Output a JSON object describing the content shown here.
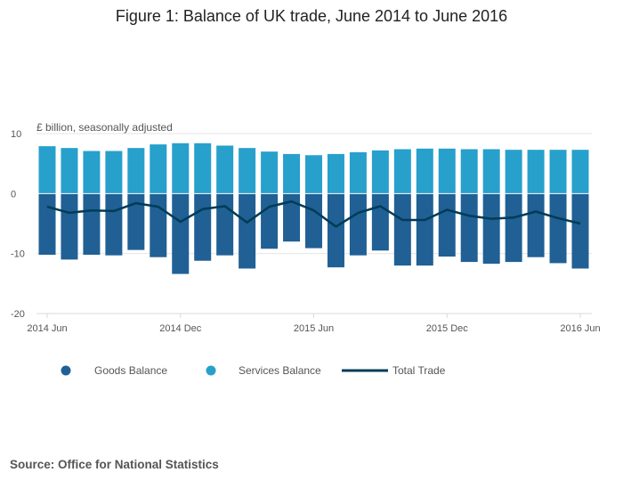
{
  "chart_data": {
    "type": "bar",
    "title": "Figure 1: Balance of UK trade, June 2014 to June 2016",
    "units_label": "£ billion, seasonally adjusted",
    "source": "Source: Office for National Statistics",
    "categories": [
      "2014 Jun",
      "2014 Jul",
      "2014 Aug",
      "2014 Sep",
      "2014 Oct",
      "2014 Nov",
      "2014 Dec",
      "2015 Jan",
      "2015 Feb",
      "2015 Mar",
      "2015 Apr",
      "2015 May",
      "2015 Jun",
      "2015 Jul",
      "2015 Aug",
      "2015 Sep",
      "2015 Oct",
      "2015 Nov",
      "2015 Dec",
      "2016 Jan",
      "2016 Feb",
      "2016 Mar",
      "2016 Apr",
      "2016 May",
      "2016 Jun"
    ],
    "series": [
      {
        "name": "Goods Balance",
        "type": "bar",
        "stack": "balance",
        "color": "#206095",
        "values": [
          -10.2,
          -11.0,
          -10.2,
          -10.3,
          -9.4,
          -10.6,
          -13.4,
          -11.2,
          -10.3,
          -12.5,
          -9.2,
          -8.0,
          -9.1,
          -12.3,
          -10.3,
          -9.5,
          -12.0,
          -12.0,
          -10.5,
          -11.4,
          -11.7,
          -11.4,
          -10.6,
          -11.6,
          -12.5
        ]
      },
      {
        "name": "Services Balance",
        "type": "bar",
        "stack": "balance",
        "color": "#27a0cc",
        "values": [
          7.9,
          7.6,
          7.1,
          7.1,
          7.6,
          8.2,
          8.4,
          8.4,
          8.0,
          7.6,
          7.0,
          6.6,
          6.4,
          6.6,
          6.9,
          7.2,
          7.4,
          7.5,
          7.5,
          7.4,
          7.4,
          7.3,
          7.3,
          7.3,
          7.3
        ]
      },
      {
        "name": "Total Trade",
        "type": "line",
        "color": "#003c57",
        "values": [
          -2.2,
          -3.2,
          -2.8,
          -2.9,
          -1.6,
          -2.2,
          -4.7,
          -2.6,
          -2.1,
          -4.8,
          -2.2,
          -1.3,
          -2.8,
          -5.5,
          -3.2,
          -2.1,
          -4.4,
          -4.4,
          -2.7,
          -3.7,
          -4.2,
          -4.0,
          -3.0,
          -4.1,
          -5.0
        ]
      }
    ],
    "x_tick_labels": [
      "2014 Jun",
      "2014 Dec",
      "2015 Jun",
      "2015 Dec",
      "2016 Jun"
    ],
    "y_ticks": [
      10,
      0,
      -10,
      -20
    ],
    "ylim": [
      -20,
      10
    ],
    "grid": true,
    "legend_placement": "bottom-left"
  }
}
